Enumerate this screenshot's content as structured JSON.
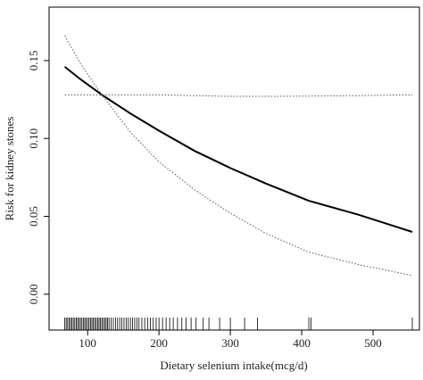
{
  "chart_data": {
    "type": "line",
    "xlabel": "Dietary selenium intake(mcg/d)",
    "ylabel": "Risk for kidney stones",
    "xlim": [
      46,
      565
    ],
    "ylim": [
      -0.023,
      0.1843
    ],
    "xticks": [
      100,
      200,
      300,
      400,
      500
    ],
    "yticks": [
      {
        "value": 0,
        "label": "0.00"
      },
      {
        "value": 0.05,
        "label": "0.05"
      },
      {
        "value": 0.1,
        "label": "0.10"
      },
      {
        "value": 0.15,
        "label": "0.15"
      }
    ],
    "x": [
      68,
      90,
      120,
      160,
      200,
      250,
      300,
      350,
      410,
      480,
      555
    ],
    "series": [
      {
        "color": "#000000",
        "dash": "solid",
        "values": [
          0.146,
          0.138,
          0.128,
          0.116,
          0.105,
          0.092,
          0.081,
          0.071,
          0.06,
          0.051,
          0.04
        ]
      },
      {
        "color": "#555555",
        "dash": "dotted",
        "values": [
          0.128,
          0.128,
          0.128,
          0.128,
          0.128,
          0.1275,
          0.127,
          0.127,
          0.1272,
          0.1275,
          0.128
        ]
      },
      {
        "color": "#555555",
        "dash": "dotted",
        "values": [
          0.166,
          0.148,
          0.128,
          0.104,
          0.085,
          0.067,
          0.052,
          0.039,
          0.027,
          0.019,
          0.012
        ]
      }
    ],
    "rug": [
      68,
      70,
      72,
      74,
      76,
      78,
      80,
      82,
      84,
      86,
      88,
      90,
      92,
      94,
      96,
      98,
      100,
      102,
      104,
      106,
      108,
      110,
      112,
      114,
      116,
      118,
      120,
      122,
      124,
      126,
      128,
      130,
      133,
      136,
      139,
      142,
      145,
      148,
      151,
      154,
      157,
      160,
      163,
      166,
      169,
      172,
      176,
      180,
      184,
      188,
      192,
      196,
      200,
      205,
      210,
      215,
      220,
      226,
      232,
      238,
      245,
      252,
      262,
      270,
      285,
      300,
      320,
      338,
      410,
      413,
      555
    ]
  }
}
